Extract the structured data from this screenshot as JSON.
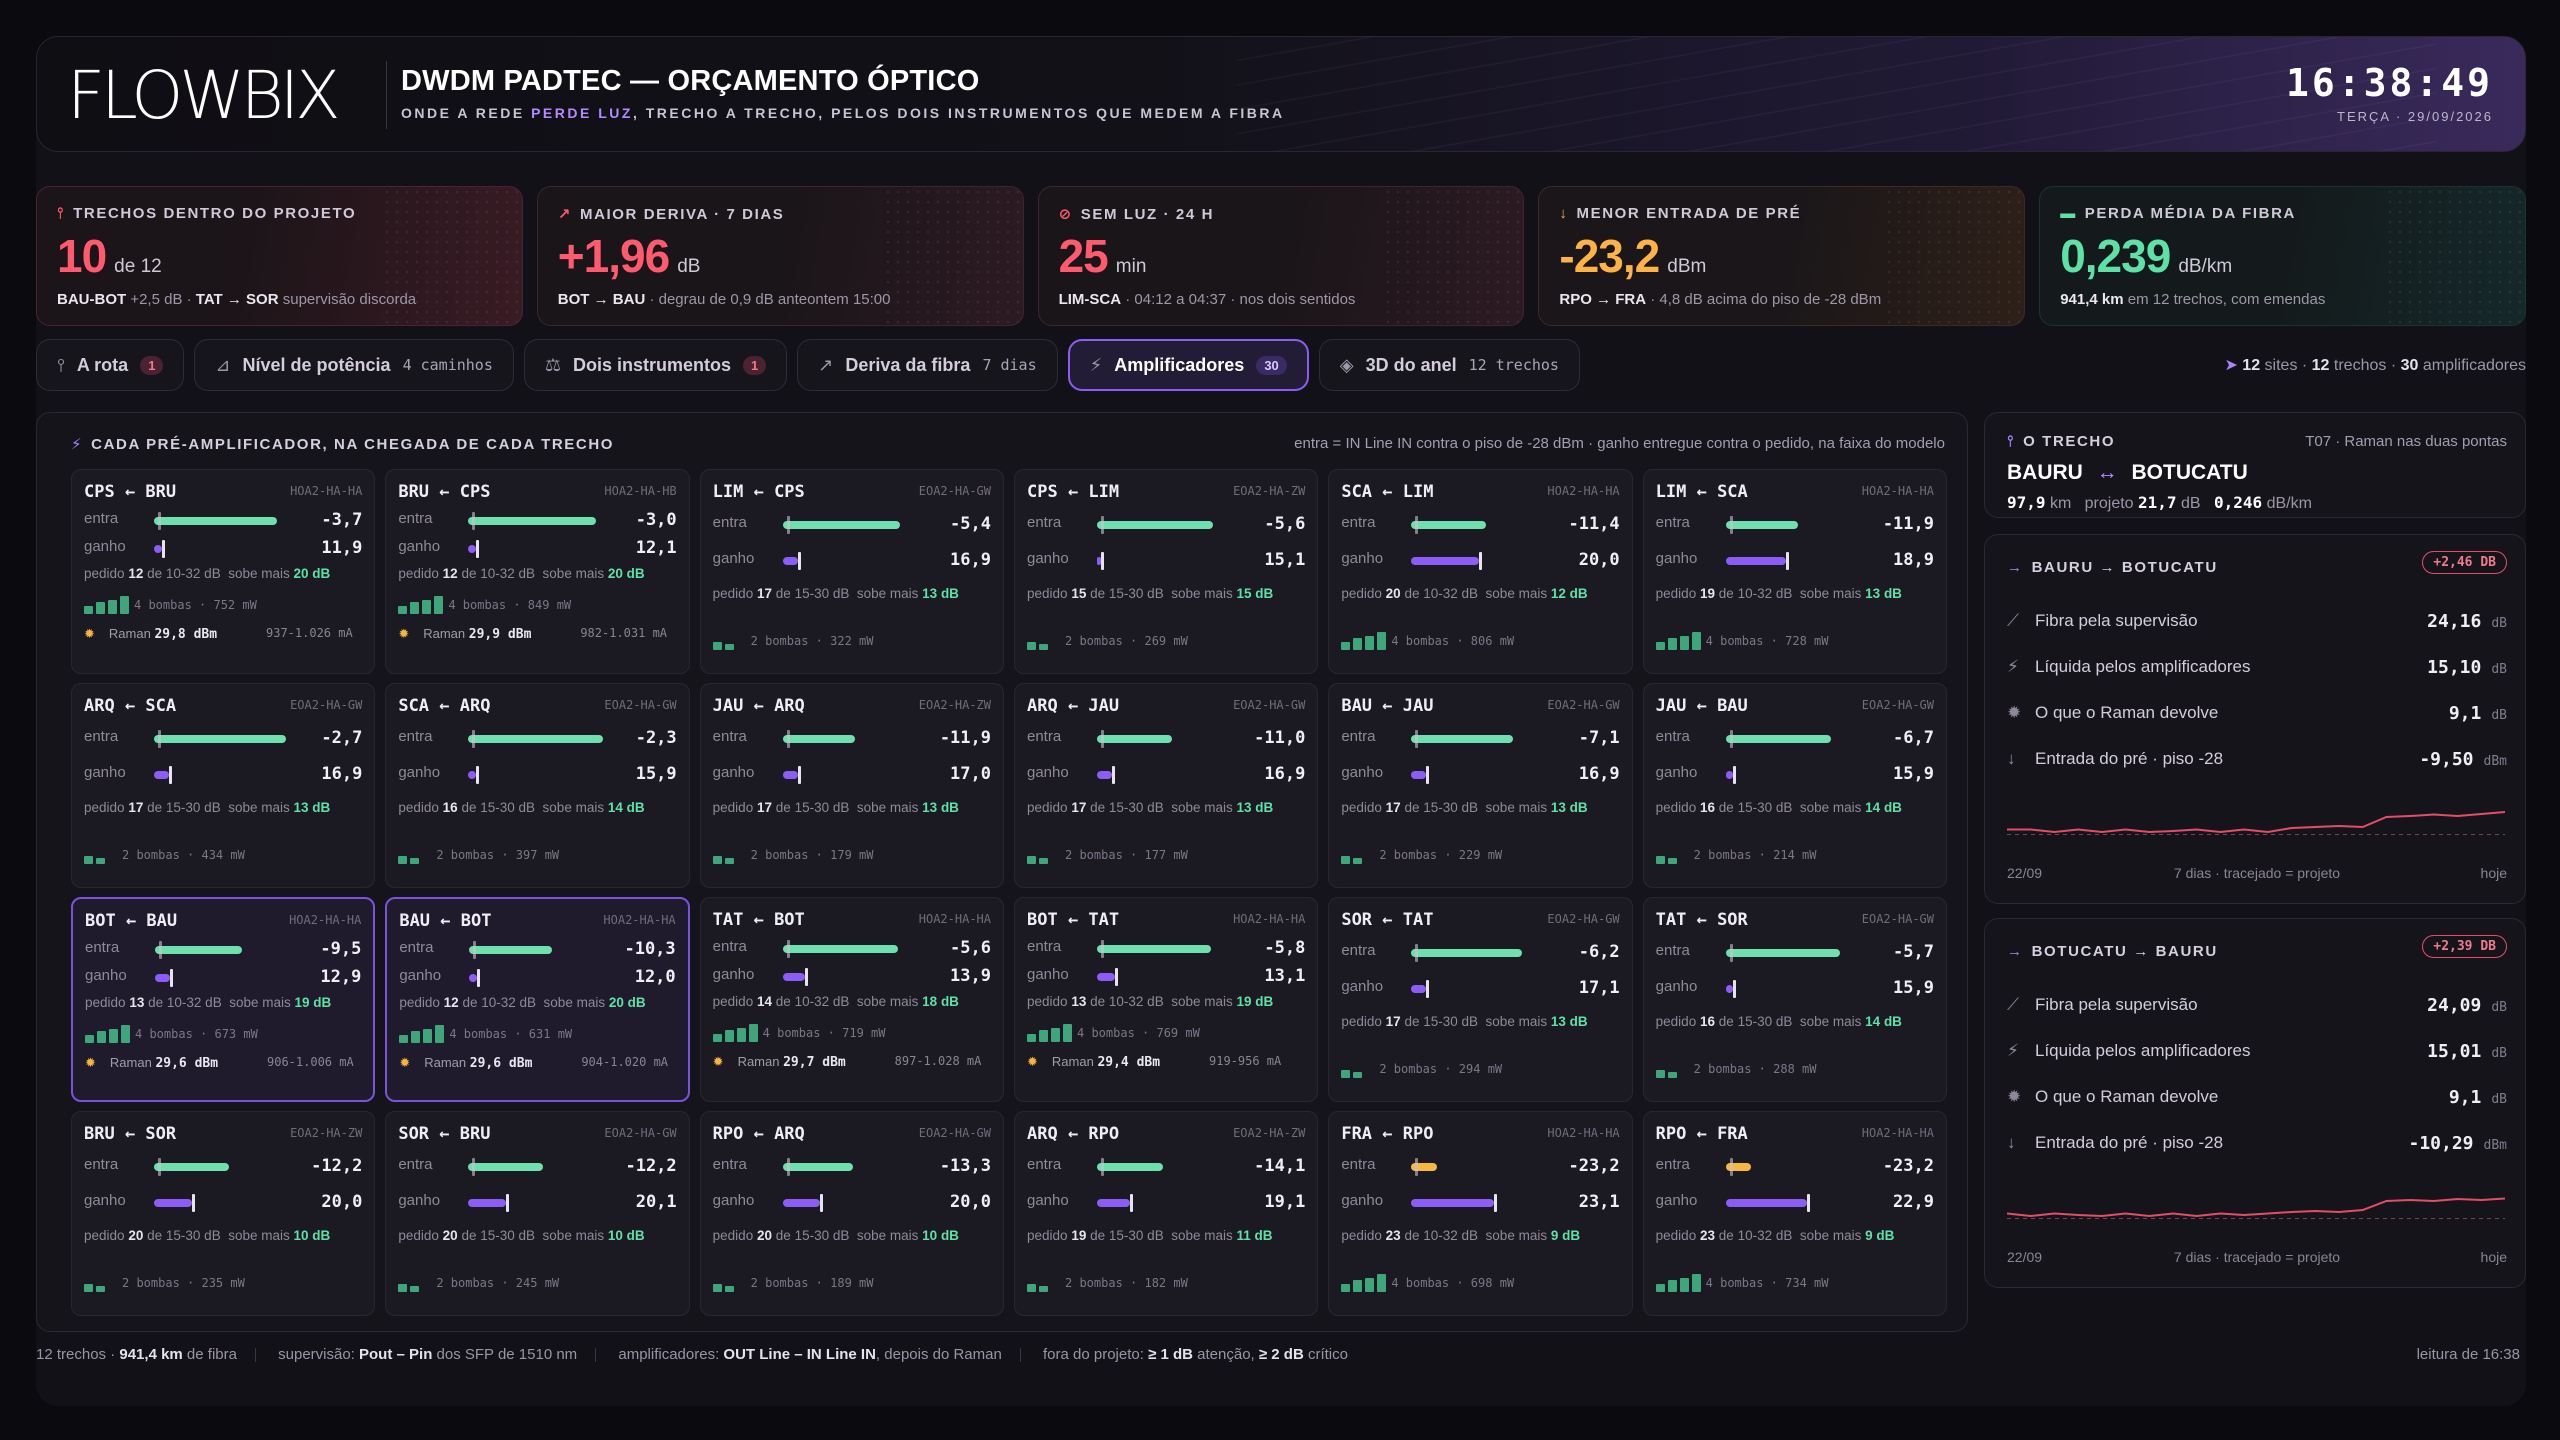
{
  "header": {
    "logo": "FLOWBIX",
    "title": "DWDM PADTEC — ORÇAMENTO ÓPTICO",
    "subtitle_pre": "ONDE A REDE ",
    "subtitle_hl": "PERDE LUZ",
    "subtitle_post": ", TRECHO A TRECHO, PELOS DOIS INSTRUMENTOS QUE MEDEM A FIBRA",
    "time": "16:38:49",
    "date": "TERÇA · 29/09/2026"
  },
  "kpis": [
    {
      "label": "TRECHOS DENTRO DO PROJETO",
      "icon": "route-icon",
      "value": "10",
      "unit": "de 12",
      "note_b1": "BAU-BOT",
      "note_1": " +2,5 dB · ",
      "note_b2": "TAT → SOR",
      "note_2": " supervisão discorda",
      "color": "#ff5a6e"
    },
    {
      "label": "MAIOR DERIVA · 7 DIAS",
      "icon": "trend-up-icon",
      "value": "+1,96",
      "unit": "dB",
      "note_b1": "BOT → BAU",
      "note_1": " · degrau de 0,9 dB anteontem 15:00",
      "note_b2": "",
      "note_2": "",
      "color": "#ff5a6e"
    },
    {
      "label": "SEM LUZ · 24 H",
      "icon": "link-off-icon",
      "value": "25",
      "unit": "min",
      "note_b1": "LIM-SCA",
      "note_1": " · 04:12 a 04:37 · nos dois sentidos",
      "note_b2": "",
      "note_2": "",
      "color": "#ff5a6e"
    },
    {
      "label": "MENOR ENTRADA DE PRÉ",
      "icon": "arrow-down-icon",
      "value": "-23,2",
      "unit": "dBm",
      "note_b1": "RPO → FRA",
      "note_1": " · 4,8 dB acima do piso de -28 dBm",
      "note_b2": "",
      "note_2": "",
      "color": "#ffb347"
    },
    {
      "label": "PERDA MÉDIA DA FIBRA",
      "icon": "ruler-icon",
      "value": "0,239",
      "unit": "dB/km",
      "note_b1": "941,4 km",
      "note_1": " em 12 trechos, com emendas",
      "note_b2": "",
      "note_2": "",
      "color": "#5ee1a7"
    }
  ],
  "tabs": [
    {
      "label": "A rota",
      "count": "",
      "badge": "1",
      "icon": "route-icon",
      "active": false
    },
    {
      "label": "Nível de potência",
      "count": "4 caminhos",
      "badge": "",
      "icon": "chart-icon",
      "active": false
    },
    {
      "label": "Dois instrumentos",
      "count": "",
      "badge": "1",
      "icon": "scale-icon",
      "active": false
    },
    {
      "label": "Deriva da fibra",
      "count": "7 dias",
      "badge": "",
      "icon": "trend-icon",
      "active": false
    },
    {
      "label": "Amplificadores",
      "count": "",
      "badge": "30",
      "icon": "bolt-icon",
      "active": true
    },
    {
      "label": "3D do anel",
      "count": "12 trechos",
      "badge": "",
      "icon": "cube-icon",
      "active": false
    }
  ],
  "tabs_summary": {
    "sites": "12",
    "sites_l": " sites · ",
    "trechos": "12",
    "trechos_l": " trechos · ",
    "amps": "30",
    "amps_l": " amplificadores"
  },
  "panel": {
    "title": "CADA PRÉ-AMPLIFICADOR, NA CHEGADA DE CADA TRECHO",
    "legend": "entra = IN Line IN contra o piso de -28 dBm · ganho entregue contra o pedido, na faixa do modelo",
    "in_label": "entra",
    "gain_label": "ganho"
  },
  "cards": [
    {
      "route": "CPS ← BRU",
      "model": "HOA2-HA-HA",
      "in": "-3,7",
      "gain": "11,9",
      "in_f": 0.82,
      "gain_f": 0.05,
      "req": "12",
      "range": "10-32 dB",
      "over": "20 dB",
      "pumps": "4 bombas · 752 mW",
      "np": 4,
      "raman": true,
      "rp": "29,8 dBm",
      "rr": "937-1.026 mA",
      "hl": false,
      "inc": "#6fe0ad",
      "gc": "#8b5cf6"
    },
    {
      "route": "BRU ← CPS",
      "model": "HOA2-HA-HB",
      "in": "-3,0",
      "gain": "12,1",
      "in_f": 0.85,
      "gain_f": 0.05,
      "req": "12",
      "range": "10-32 dB",
      "over": "20 dB",
      "pumps": "4 bombas · 849 mW",
      "np": 4,
      "raman": true,
      "rp": "29,9 dBm",
      "rr": "982-1.031 mA",
      "hl": false,
      "inc": "#6fe0ad",
      "gc": "#8b5cf6"
    },
    {
      "route": "LIM ← CPS",
      "model": "EOA2-HA-GW",
      "in": "-5,4",
      "gain": "16,9",
      "in_f": 0.78,
      "gain_f": 0.1,
      "req": "17",
      "range": "15-30 dB",
      "over": "13 dB",
      "pumps": "2 bombas · 322 mW",
      "np": 2,
      "raman": false,
      "hl": false,
      "inc": "#6fe0ad",
      "gc": "#8b5cf6"
    },
    {
      "route": "CPS ← LIM",
      "model": "EOA2-HA-ZW",
      "in": "-5,6",
      "gain": "15,1",
      "in_f": 0.77,
      "gain_f": 0.01,
      "req": "15",
      "range": "15-30 dB",
      "over": "15 dB",
      "pumps": "2 bombas · 269 mW",
      "np": 2,
      "raman": false,
      "hl": false,
      "inc": "#6fe0ad",
      "gc": "#8b5cf6"
    },
    {
      "route": "SCA ← LIM",
      "model": "HOA2-HA-HA",
      "in": "-11,4",
      "gain": "20,0",
      "in_f": 0.5,
      "gain_f": 0.45,
      "req": "20",
      "range": "10-32 dB",
      "over": "12 dB",
      "pumps": "4 bombas · 806 mW",
      "np": 4,
      "raman": false,
      "hl": false,
      "inc": "#6fe0ad",
      "gc": "#8b5cf6"
    },
    {
      "route": "LIM ← SCA",
      "model": "HOA2-HA-HA",
      "in": "-11,9",
      "gain": "18,9",
      "in_f": 0.48,
      "gain_f": 0.4,
      "req": "19",
      "range": "10-32 dB",
      "over": "13 dB",
      "pumps": "4 bombas · 728 mW",
      "np": 4,
      "raman": false,
      "hl": false,
      "inc": "#6fe0ad",
      "gc": "#8b5cf6"
    },
    {
      "route": "ARQ ← SCA",
      "model": "EOA2-HA-GW",
      "in": "-2,7",
      "gain": "16,9",
      "in_f": 0.88,
      "gain_f": 0.1,
      "req": "17",
      "range": "15-30 dB",
      "over": "13 dB",
      "pumps": "2 bombas · 434 mW",
      "np": 2,
      "raman": false,
      "hl": false,
      "inc": "#6fe0ad",
      "gc": "#8b5cf6"
    },
    {
      "route": "SCA ← ARQ",
      "model": "EOA2-HA-GW",
      "in": "-2,3",
      "gain": "15,9",
      "in_f": 0.9,
      "gain_f": 0.05,
      "req": "16",
      "range": "15-30 dB",
      "over": "14 dB",
      "pumps": "2 bombas · 397 mW",
      "np": 2,
      "raman": false,
      "hl": false,
      "inc": "#6fe0ad",
      "gc": "#8b5cf6"
    },
    {
      "route": "JAU ← ARQ",
      "model": "EOA2-HA-ZW",
      "in": "-11,9",
      "gain": "17,0",
      "in_f": 0.48,
      "gain_f": 0.1,
      "req": "17",
      "range": "15-30 dB",
      "over": "13 dB",
      "pumps": "2 bombas · 179 mW",
      "np": 2,
      "raman": false,
      "hl": false,
      "inc": "#6fe0ad",
      "gc": "#8b5cf6"
    },
    {
      "route": "ARQ ← JAU",
      "model": "EOA2-HA-GW",
      "in": "-11,0",
      "gain": "16,9",
      "in_f": 0.5,
      "gain_f": 0.1,
      "req": "17",
      "range": "15-30 dB",
      "over": "13 dB",
      "pumps": "2 bombas · 177 mW",
      "np": 2,
      "raman": false,
      "hl": false,
      "inc": "#6fe0ad",
      "gc": "#8b5cf6"
    },
    {
      "route": "BAU ← JAU",
      "model": "EOA2-HA-GW",
      "in": "-7,1",
      "gain": "16,9",
      "in_f": 0.68,
      "gain_f": 0.1,
      "req": "17",
      "range": "15-30 dB",
      "over": "13 dB",
      "pumps": "2 bombas · 229 mW",
      "np": 2,
      "raman": false,
      "hl": false,
      "inc": "#6fe0ad",
      "gc": "#8b5cf6"
    },
    {
      "route": "JAU ← BAU",
      "model": "EOA2-HA-GW",
      "in": "-6,7",
      "gain": "15,9",
      "in_f": 0.7,
      "gain_f": 0.05,
      "req": "16",
      "range": "15-30 dB",
      "over": "14 dB",
      "pumps": "2 bombas · 214 mW",
      "np": 2,
      "raman": false,
      "hl": false,
      "inc": "#6fe0ad",
      "gc": "#8b5cf6"
    },
    {
      "route": "BOT ← BAU",
      "model": "HOA2-HA-HA",
      "in": "-9,5",
      "gain": "12,9",
      "in_f": 0.58,
      "gain_f": 0.1,
      "req": "13",
      "range": "10-32 dB",
      "over": "19 dB",
      "pumps": "4 bombas · 673 mW",
      "np": 4,
      "raman": true,
      "rp": "29,6 dBm",
      "rr": "906-1.006 mA",
      "hl": true,
      "inc": "#6fe0ad",
      "gc": "#8b5cf6"
    },
    {
      "route": "BAU ← BOT",
      "model": "HOA2-HA-HA",
      "in": "-10,3",
      "gain": "12,0",
      "in_f": 0.55,
      "gain_f": 0.05,
      "req": "12",
      "range": "10-32 dB",
      "over": "20 dB",
      "pumps": "4 bombas · 631 mW",
      "np": 4,
      "raman": true,
      "rp": "29,6 dBm",
      "rr": "904-1.020 mA",
      "hl": true,
      "inc": "#6fe0ad",
      "gc": "#8b5cf6"
    },
    {
      "route": "TAT ← BOT",
      "model": "HOA2-HA-HA",
      "in": "-5,6",
      "gain": "13,9",
      "in_f": 0.77,
      "gain_f": 0.15,
      "req": "14",
      "range": "10-32 dB",
      "over": "18 dB",
      "pumps": "4 bombas · 719 mW",
      "np": 4,
      "raman": true,
      "rp": "29,7 dBm",
      "rr": "897-1.028 mA",
      "hl": false,
      "inc": "#6fe0ad",
      "gc": "#8b5cf6"
    },
    {
      "route": "BOT ← TAT",
      "model": "HOA2-HA-HA",
      "in": "-5,8",
      "gain": "13,1",
      "in_f": 0.76,
      "gain_f": 0.12,
      "req": "13",
      "range": "10-32 dB",
      "over": "19 dB",
      "pumps": "4 bombas · 769 mW",
      "np": 4,
      "raman": true,
      "rp": "29,4 dBm",
      "rr": "919-956 mA",
      "hl": false,
      "inc": "#6fe0ad",
      "gc": "#8b5cf6"
    },
    {
      "route": "SOR ← TAT",
      "model": "EOA2-HA-GW",
      "in": "-6,2",
      "gain": "17,1",
      "in_f": 0.74,
      "gain_f": 0.1,
      "req": "17",
      "range": "15-30 dB",
      "over": "13 dB",
      "pumps": "2 bombas · 294 mW",
      "np": 2,
      "raman": false,
      "hl": false,
      "inc": "#6fe0ad",
      "gc": "#8b5cf6"
    },
    {
      "route": "TAT ← SOR",
      "model": "EOA2-HA-GW",
      "in": "-5,7",
      "gain": "15,9",
      "in_f": 0.76,
      "gain_f": 0.05,
      "req": "16",
      "range": "15-30 dB",
      "over": "14 dB",
      "pumps": "2 bombas · 288 mW",
      "np": 2,
      "raman": false,
      "hl": false,
      "inc": "#6fe0ad",
      "gc": "#8b5cf6"
    },
    {
      "route": "BRU ← SOR",
      "model": "EOA2-HA-ZW",
      "in": "-12,2",
      "gain": "20,0",
      "in_f": 0.5,
      "gain_f": 0.25,
      "req": "20",
      "range": "15-30 dB",
      "over": "10 dB",
      "pumps": "2 bombas · 235 mW",
      "np": 2,
      "raman": false,
      "hl": false,
      "inc": "#6fe0ad",
      "gc": "#8b5cf6"
    },
    {
      "route": "SOR ← BRU",
      "model": "EOA2-HA-GW",
      "in": "-12,2",
      "gain": "20,1",
      "in_f": 0.5,
      "gain_f": 0.25,
      "req": "20",
      "range": "15-30 dB",
      "over": "10 dB",
      "pumps": "2 bombas · 245 mW",
      "np": 2,
      "raman": false,
      "hl": false,
      "inc": "#6fe0ad",
      "gc": "#8b5cf6"
    },
    {
      "route": "RPO ← ARQ",
      "model": "EOA2-HA-GW",
      "in": "-13,3",
      "gain": "20,0",
      "in_f": 0.47,
      "gain_f": 0.25,
      "req": "20",
      "range": "15-30 dB",
      "over": "10 dB",
      "pumps": "2 bombas · 189 mW",
      "np": 2,
      "raman": false,
      "hl": false,
      "inc": "#6fe0ad",
      "gc": "#8b5cf6"
    },
    {
      "route": "ARQ ← RPO",
      "model": "EOA2-HA-ZW",
      "in": "-14,1",
      "gain": "19,1",
      "in_f": 0.44,
      "gain_f": 0.22,
      "req": "19",
      "range": "15-30 dB",
      "over": "11 dB",
      "pumps": "2 bombas · 182 mW",
      "np": 2,
      "raman": false,
      "hl": false,
      "inc": "#6fe0ad",
      "gc": "#8b5cf6"
    },
    {
      "route": "FRA ← RPO",
      "model": "HOA2-HA-HA",
      "in": "-23,2",
      "gain": "23,1",
      "in_f": 0.17,
      "gain_f": 0.55,
      "req": "23",
      "range": "10-32 dB",
      "over": "9 dB",
      "pumps": "4 bombas · 698 mW",
      "np": 4,
      "raman": false,
      "hl": false,
      "inc": "#f5b942",
      "gc": "#8b5cf6"
    },
    {
      "route": "RPO ← FRA",
      "model": "HOA2-HA-HA",
      "in": "-23,2",
      "gain": "22,9",
      "in_f": 0.17,
      "gain_f": 0.54,
      "req": "23",
      "range": "10-32 dB",
      "over": "9 dB",
      "pumps": "4 bombas · 734 mW",
      "np": 4,
      "raman": false,
      "hl": false,
      "inc": "#f5b942",
      "gc": "#8b5cf6"
    }
  ],
  "card_text": {
    "pedido": "pedido",
    "de": "de",
    "sobe": "sobe mais",
    "raman": "Raman"
  },
  "trecho": {
    "title": "O TRECHO",
    "tag": "T07 · Raman nas duas pontas",
    "a": "BAURU",
    "b": "BOTUCATU",
    "km": "97,9",
    "km_l": "km",
    "proj_l": "projeto",
    "proj": "21,7",
    "proj_u": "dB",
    "loss": "0,246",
    "loss_u": "dB/km"
  },
  "directions": [
    {
      "title": "BAURU → BOTUCATU",
      "pill": "+2,46 DB",
      "rows": [
        {
          "icon": "fiber-icon",
          "label": "Fibra pela supervisão",
          "value": "24,16",
          "unit": "dB"
        },
        {
          "icon": "bolt-icon",
          "label": "Líquida pelos amplificadores",
          "value": "15,10",
          "unit": "dB"
        },
        {
          "icon": "sun-icon",
          "label": "O que o Raman devolve",
          "value": "9,1",
          "unit": "dB"
        },
        {
          "icon": "arrow-down-icon",
          "label": "Entrada do pré · piso -28",
          "value": "-9,50",
          "unit": "dBm"
        }
      ],
      "spark": [
        0.35,
        0.35,
        0.3,
        0.35,
        0.3,
        0.35,
        0.3,
        0.32,
        0.35,
        0.3,
        0.35,
        0.3,
        0.38,
        0.4,
        0.42,
        0.4,
        0.6,
        0.62,
        0.65,
        0.62,
        0.66,
        0.7
      ],
      "f_left": "22/09",
      "f_mid": "7 dias · tracejado = projeto",
      "f_right": "hoje"
    },
    {
      "title": "BOTUCATU → BAURU",
      "pill": "+2,39 DB",
      "rows": [
        {
          "icon": "fiber-icon",
          "label": "Fibra pela supervisão",
          "value": "24,09",
          "unit": "dB"
        },
        {
          "icon": "bolt-icon",
          "label": "Líquida pelos amplificadores",
          "value": "15,01",
          "unit": "dB"
        },
        {
          "icon": "sun-icon",
          "label": "O que o Raman devolve",
          "value": "9,1",
          "unit": "dB"
        },
        {
          "icon": "arrow-down-icon",
          "label": "Entrada do pré · piso -28",
          "value": "-10,29",
          "unit": "dBm"
        }
      ],
      "spark": [
        0.35,
        0.3,
        0.35,
        0.32,
        0.3,
        0.35,
        0.3,
        0.35,
        0.3,
        0.35,
        0.32,
        0.35,
        0.38,
        0.4,
        0.38,
        0.42,
        0.6,
        0.62,
        0.6,
        0.64,
        0.62,
        0.65
      ],
      "f_left": "22/09",
      "f_mid": "7 dias · tracejado = projeto",
      "f_right": "hoje"
    }
  ],
  "footer": {
    "a1": "12 trechos · ",
    "a2": "941,4 km",
    "a3": " de fibra",
    "b1": "supervisão: ",
    "b2": "Pout – Pin",
    "b3": " dos SFP de 1510 nm",
    "c1": "amplificadores: ",
    "c2": "OUT Line – IN Line IN",
    "c3": ", depois do Raman",
    "d1": "fora do projeto: ",
    "d2": "≥ 1 dB",
    "d3": " atenção, ",
    "d4": "≥ 2 dB",
    "d5": " crítico",
    "right": "leitura de 16:38"
  }
}
